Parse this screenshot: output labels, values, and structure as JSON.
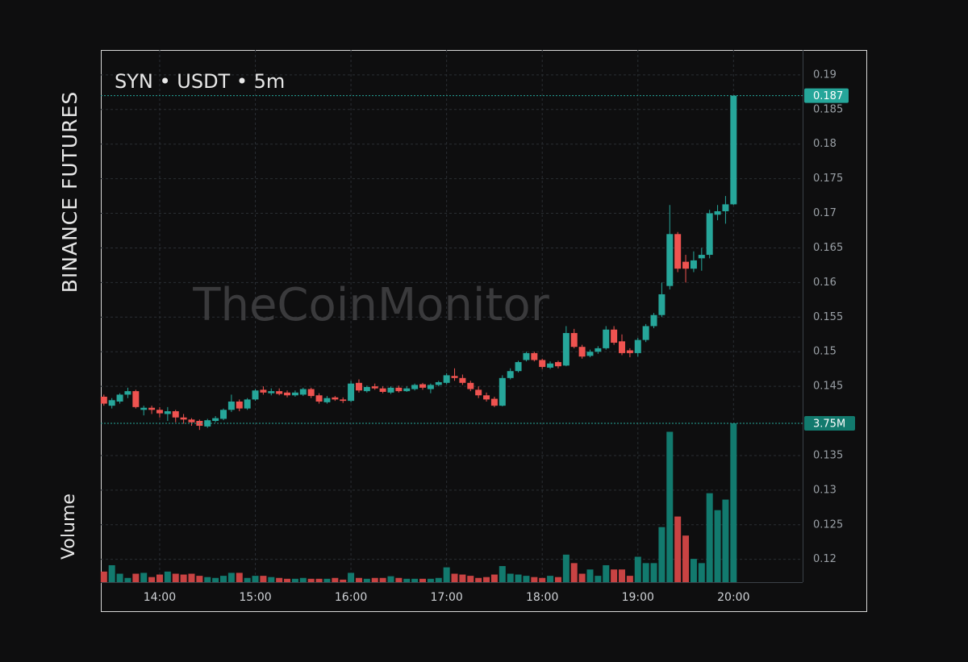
{
  "chart_data": {
    "type": "candlestick",
    "title": "SYN • USDT • 5m",
    "exchange": "BINANCE FUTURES",
    "volume_title": "Volume",
    "watermark": "TheCoinMonitor",
    "x": [
      "13:25",
      "13:30",
      "13:35",
      "13:40",
      "13:45",
      "13:50",
      "13:55",
      "14:00",
      "14:05",
      "14:10",
      "14:15",
      "14:20",
      "14:25",
      "14:30",
      "14:35",
      "14:40",
      "14:45",
      "14:50",
      "14:55",
      "15:00",
      "15:05",
      "15:10",
      "15:15",
      "15:20",
      "15:25",
      "15:30",
      "15:35",
      "15:40",
      "15:45",
      "15:50",
      "15:55",
      "16:00",
      "16:05",
      "16:10",
      "16:15",
      "16:20",
      "16:25",
      "16:30",
      "16:35",
      "16:40",
      "16:45",
      "16:50",
      "16:55",
      "17:00",
      "17:05",
      "17:10",
      "17:15",
      "17:20",
      "17:25",
      "17:30",
      "17:35",
      "17:40",
      "17:45",
      "17:50",
      "17:55",
      "18:00",
      "18:05",
      "18:10",
      "18:15",
      "18:20",
      "18:25",
      "18:30",
      "18:35",
      "18:40",
      "18:45",
      "18:50",
      "18:55",
      "19:00",
      "19:05",
      "19:10",
      "19:15",
      "19:20",
      "19:25",
      "19:30",
      "19:35",
      "19:40",
      "19:45",
      "19:50",
      "19:55",
      "20:00"
    ],
    "open": [
      0.1435,
      0.1422,
      0.1428,
      0.1438,
      0.1443,
      0.1416,
      0.1419,
      0.1416,
      0.141,
      0.1414,
      0.1405,
      0.1402,
      0.14,
      0.1392,
      0.14,
      0.1403,
      0.1416,
      0.1428,
      0.1418,
      0.1431,
      0.1445,
      0.144,
      0.1443,
      0.1441,
      0.1437,
      0.1438,
      0.1446,
      0.1437,
      0.1427,
      0.1434,
      0.1431,
      0.1429,
      0.1455,
      0.1443,
      0.145,
      0.1447,
      0.1441,
      0.1448,
      0.1443,
      0.1446,
      0.1453,
      0.1446,
      0.1452,
      0.1455,
      0.1465,
      0.1462,
      0.1455,
      0.1445,
      0.1437,
      0.1432,
      0.1422,
      0.1462,
      0.1472,
      0.1488,
      0.1498,
      0.1488,
      0.1477,
      0.1485,
      0.148,
      0.1527,
      0.1507,
      0.1494,
      0.15,
      0.1505,
      0.1532,
      0.1515,
      0.1502,
      0.1498,
      0.1517,
      0.1537,
      0.1553,
      0.1595,
      0.167,
      0.163,
      0.162,
      0.1635,
      0.164,
      0.1698,
      0.1703,
      0.1713
    ],
    "high": [
      0.1438,
      0.1433,
      0.144,
      0.1448,
      0.1445,
      0.1422,
      0.1422,
      0.142,
      0.142,
      0.1416,
      0.141,
      0.1404,
      0.1402,
      0.1403,
      0.1407,
      0.1418,
      0.1438,
      0.1431,
      0.1433,
      0.1446,
      0.145,
      0.1447,
      0.1447,
      0.1444,
      0.1444,
      0.1448,
      0.1448,
      0.144,
      0.1436,
      0.1436,
      0.1434,
      0.1458,
      0.146,
      0.1451,
      0.1454,
      0.145,
      0.145,
      0.1451,
      0.145,
      0.1454,
      0.1455,
      0.1454,
      0.1458,
      0.1469,
      0.1476,
      0.1467,
      0.1458,
      0.145,
      0.1441,
      0.1435,
      0.1466,
      0.1476,
      0.1487,
      0.15,
      0.15,
      0.149,
      0.1486,
      0.1487,
      0.1537,
      0.1533,
      0.151,
      0.1503,
      0.1508,
      0.1537,
      0.1537,
      0.1525,
      0.1505,
      0.152,
      0.154,
      0.1556,
      0.16,
      0.1712,
      0.1673,
      0.164,
      0.1645,
      0.165,
      0.1705,
      0.1712,
      0.1725,
      0.187
    ],
    "low": [
      0.1422,
      0.1418,
      0.1425,
      0.1433,
      0.1418,
      0.1408,
      0.141,
      0.1405,
      0.14,
      0.1398,
      0.1396,
      0.1393,
      0.1387,
      0.139,
      0.1398,
      0.1401,
      0.1413,
      0.1414,
      0.1416,
      0.1429,
      0.1438,
      0.1437,
      0.1437,
      0.1434,
      0.1435,
      0.1436,
      0.1433,
      0.1425,
      0.1425,
      0.1429,
      0.1426,
      0.1427,
      0.1441,
      0.1441,
      0.1445,
      0.144,
      0.1439,
      0.1441,
      0.1442,
      0.1444,
      0.1445,
      0.144,
      0.145,
      0.1453,
      0.1458,
      0.1452,
      0.1443,
      0.1433,
      0.1428,
      0.142,
      0.1421,
      0.146,
      0.147,
      0.1486,
      0.1486,
      0.1475,
      0.1475,
      0.1476,
      0.1479,
      0.1505,
      0.149,
      0.1492,
      0.1497,
      0.1503,
      0.151,
      0.1495,
      0.1492,
      0.1493,
      0.1514,
      0.1534,
      0.155,
      0.159,
      0.1615,
      0.16,
      0.1615,
      0.1617,
      0.1635,
      0.169,
      0.1685,
      0.1712
    ],
    "close": [
      0.1425,
      0.143,
      0.1438,
      0.1443,
      0.142,
      0.1419,
      0.1416,
      0.1411,
      0.1414,
      0.1405,
      0.1402,
      0.1398,
      0.1393,
      0.1401,
      0.1404,
      0.1416,
      0.1428,
      0.1418,
      0.1431,
      0.1444,
      0.1441,
      0.1443,
      0.1439,
      0.1437,
      0.1441,
      0.1446,
      0.1436,
      0.1428,
      0.1433,
      0.1431,
      0.1429,
      0.1454,
      0.1444,
      0.1449,
      0.1447,
      0.1442,
      0.1448,
      0.1443,
      0.1447,
      0.1452,
      0.1448,
      0.1452,
      0.1456,
      0.1466,
      0.1462,
      0.1455,
      0.1446,
      0.1437,
      0.1431,
      0.1422,
      0.1462,
      0.1472,
      0.1485,
      0.1498,
      0.1488,
      0.1478,
      0.1483,
      0.1479,
      0.1527,
      0.1507,
      0.1493,
      0.15,
      0.1505,
      0.1532,
      0.1513,
      0.1498,
      0.1498,
      0.1517,
      0.1537,
      0.1553,
      0.1583,
      0.167,
      0.162,
      0.162,
      0.1632,
      0.164,
      0.17,
      0.1703,
      0.1713,
      0.187
    ],
    "volume": {
      "values": [
        0.25,
        0.4,
        0.2,
        0.1,
        0.2,
        0.22,
        0.12,
        0.18,
        0.25,
        0.2,
        0.18,
        0.2,
        0.15,
        0.12,
        0.1,
        0.15,
        0.22,
        0.22,
        0.1,
        0.15,
        0.15,
        0.12,
        0.1,
        0.08,
        0.08,
        0.1,
        0.08,
        0.08,
        0.08,
        0.1,
        0.06,
        0.22,
        0.1,
        0.08,
        0.1,
        0.1,
        0.14,
        0.1,
        0.08,
        0.08,
        0.08,
        0.08,
        0.1,
        0.35,
        0.2,
        0.18,
        0.15,
        0.1,
        0.12,
        0.18,
        0.38,
        0.2,
        0.18,
        0.15,
        0.12,
        0.1,
        0.15,
        0.12,
        0.65,
        0.45,
        0.2,
        0.3,
        0.15,
        0.4,
        0.3,
        0.3,
        0.15,
        0.6,
        0.45,
        0.45,
        1.3,
        3.55,
        1.55,
        1.1,
        0.55,
        0.45,
        2.1,
        1.7,
        1.95,
        3.75
      ],
      "last_label": "3.75M",
      "lim": [
        0,
        3.75
      ]
    },
    "xticks": [
      "14:00",
      "15:00",
      "16:00",
      "17:00",
      "18:00",
      "19:00",
      "20:00"
    ],
    "ylim": [
      0.1167,
      0.1936
    ],
    "yticks": [
      0.19,
      0.185,
      0.18,
      0.175,
      0.17,
      0.165,
      0.16,
      0.155,
      0.15,
      0.145,
      0.135,
      0.13,
      0.125,
      0.12
    ],
    "up_color": "#26a69a",
    "down_color": "#ef5350",
    "volume_up_color": "#127a6e",
    "volume_down_color": "#c94343",
    "grid": true
  }
}
